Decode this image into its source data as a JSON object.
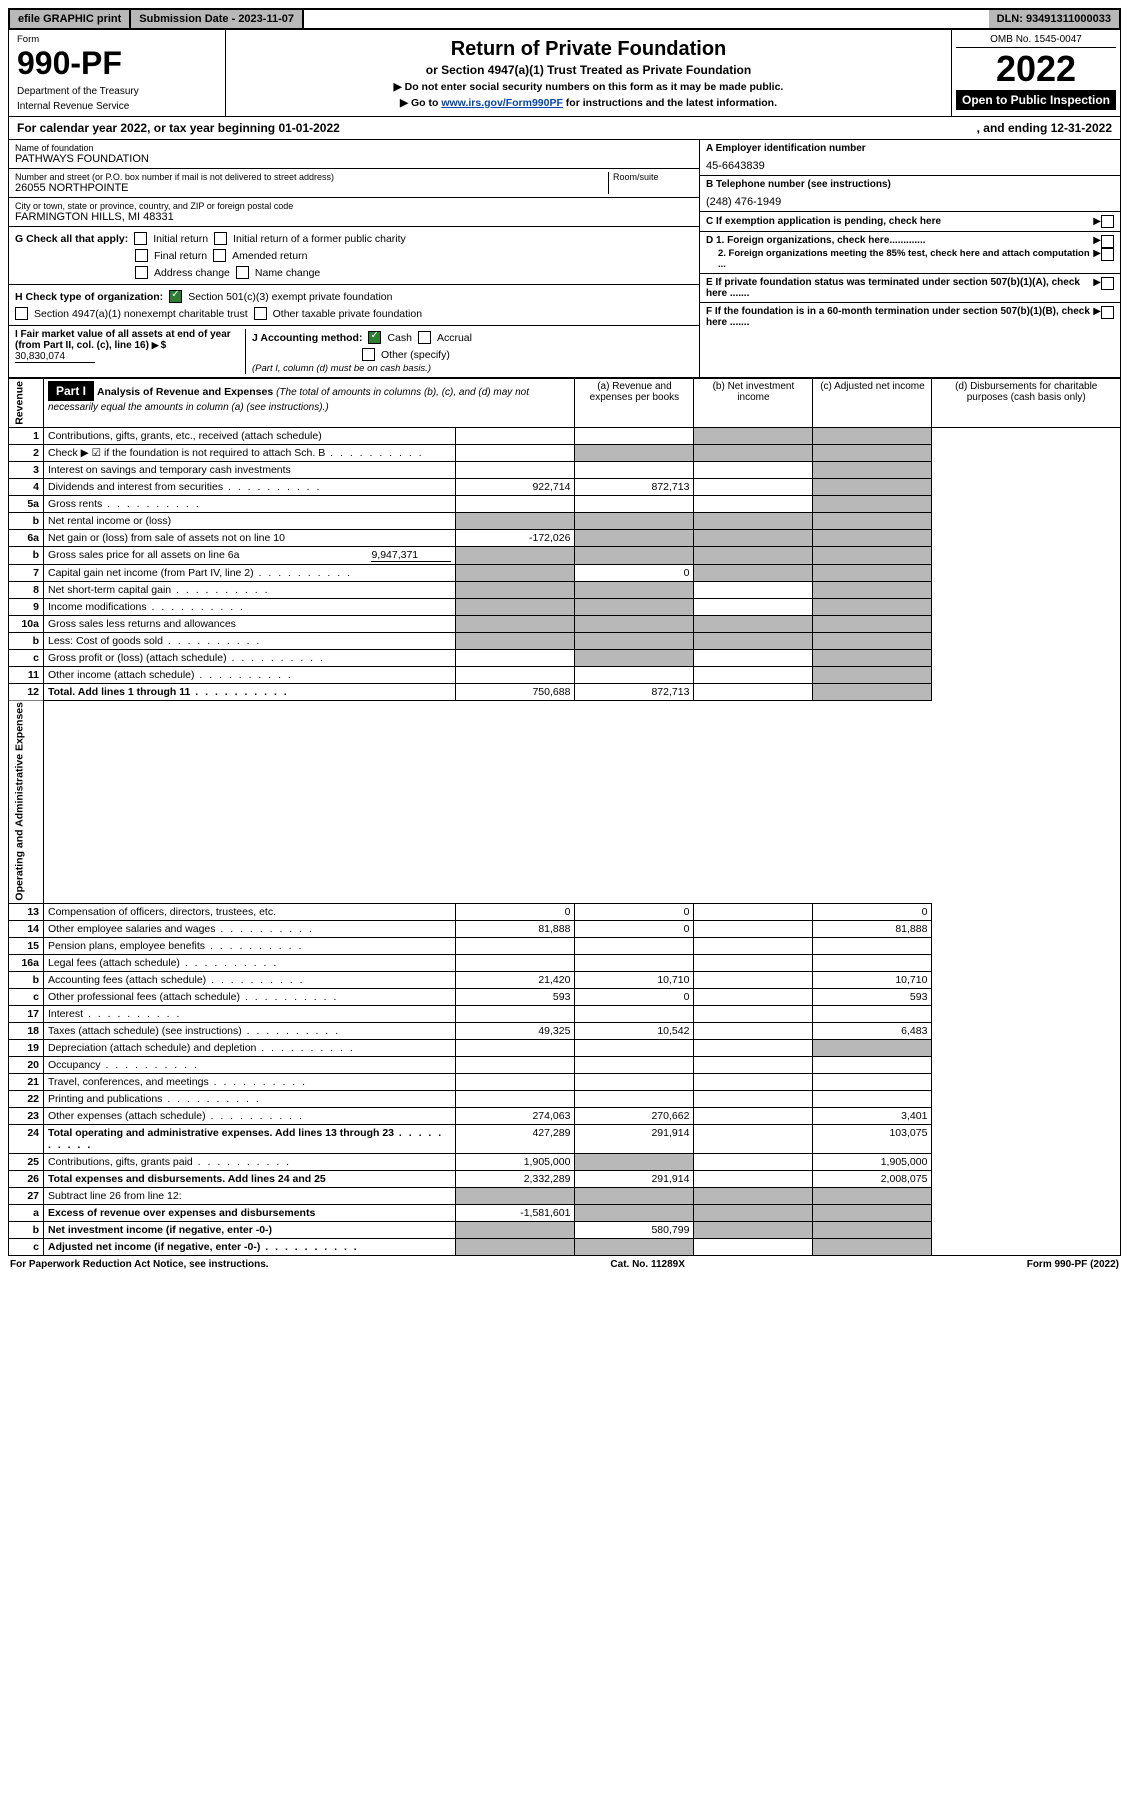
{
  "topbar": {
    "efile": "efile GRAPHIC print",
    "submission": "Submission Date - 2023-11-07",
    "dln": "DLN: 93491311000033"
  },
  "header": {
    "form_label": "Form",
    "form_number": "990-PF",
    "dept": "Department of the Treasury",
    "irs": "Internal Revenue Service",
    "title": "Return of Private Foundation",
    "subtitle": "or Section 4947(a)(1) Trust Treated as Private Foundation",
    "note1": "▶ Do not enter social security numbers on this form as it may be made public.",
    "note2_pre": "▶ Go to ",
    "note2_link": "www.irs.gov/Form990PF",
    "note2_post": " for instructions and the latest information.",
    "omb": "OMB No. 1545-0047",
    "year": "2022",
    "open": "Open to Public Inspection"
  },
  "calendar": {
    "text": "For calendar year 2022, or tax year beginning 01-01-2022",
    "ending": ", and ending 12-31-2022"
  },
  "entity": {
    "name_label": "Name of foundation",
    "name": "PATHWAYS FOUNDATION",
    "addr_label": "Number and street (or P.O. box number if mail is not delivered to street address)",
    "addr": "26055 NORTHPOINTE",
    "room_label": "Room/suite",
    "city_label": "City or town, state or province, country, and ZIP or foreign postal code",
    "city": "FARMINGTON HILLS, MI  48331",
    "ein_label": "A Employer identification number",
    "ein": "45-6643839",
    "phone_label": "B Telephone number (see instructions)",
    "phone": "(248) 476-1949",
    "c_label": "C If exemption application is pending, check here",
    "d1": "D 1. Foreign organizations, check here.............",
    "d2": "2. Foreign organizations meeting the 85% test, check here and attach computation ...",
    "e_label": "E  If private foundation status was terminated under section 507(b)(1)(A), check here .......",
    "f_label": "F  If the foundation is in a 60-month termination under section 507(b)(1)(B), check here ......."
  },
  "checks": {
    "g_label": "G Check all that apply:",
    "initial": "Initial return",
    "initial_former": "Initial return of a former public charity",
    "final": "Final return",
    "amended": "Amended return",
    "address": "Address change",
    "name_change": "Name change",
    "h_label": "H Check type of organization:",
    "h_501c3": "Section 501(c)(3) exempt private foundation",
    "h_4947": "Section 4947(a)(1) nonexempt charitable trust",
    "h_other_tax": "Other taxable private foundation",
    "i_label": "I Fair market value of all assets at end of year (from Part II, col. (c), line 16)",
    "i_value": "30,830,074",
    "j_label": "J Accounting method:",
    "j_cash": "Cash",
    "j_accrual": "Accrual",
    "j_other": "Other (specify)",
    "j_note": "(Part I, column (d) must be on cash basis.)"
  },
  "part1": {
    "label": "Part I",
    "title": "Analysis of Revenue and Expenses",
    "title_note": "(The total of amounts in columns (b), (c), and (d) may not necessarily equal the amounts in column (a) (see instructions).)",
    "col_a": "(a)   Revenue and expenses per books",
    "col_b": "(b)   Net investment income",
    "col_c": "(c)   Adjusted net income",
    "col_d": "(d)   Disbursements for charitable purposes (cash basis only)"
  },
  "sections": {
    "revenue": "Revenue",
    "expenses": "Operating and Administrative Expenses"
  },
  "rows": [
    {
      "n": "1",
      "desc": "Contributions, gifts, grants, etc., received (attach schedule)",
      "a": "",
      "b": "",
      "c": "s",
      "d": "s"
    },
    {
      "n": "2",
      "desc": "Check ▶ ☑ if the foundation is not required to attach Sch. B",
      "a": "",
      "b": "s",
      "c": "s",
      "d": "s",
      "dots": true
    },
    {
      "n": "3",
      "desc": "Interest on savings and temporary cash investments",
      "a": "",
      "b": "",
      "c": "",
      "d": "s"
    },
    {
      "n": "4",
      "desc": "Dividends and interest from securities",
      "a": "922,714",
      "b": "872,713",
      "c": "",
      "d": "s",
      "dots": true
    },
    {
      "n": "5a",
      "desc": "Gross rents",
      "a": "",
      "b": "",
      "c": "",
      "d": "s",
      "dots": true
    },
    {
      "n": "b",
      "desc": "Net rental income or (loss)",
      "a": "s",
      "b": "s",
      "c": "s",
      "d": "s"
    },
    {
      "n": "6a",
      "desc": "Net gain or (loss) from sale of assets not on line 10",
      "a": "-172,026",
      "b": "s",
      "c": "s",
      "d": "s"
    },
    {
      "n": "b",
      "desc": "Gross sales price for all assets on line 6a",
      "extra": "9,947,371",
      "a": "s",
      "b": "s",
      "c": "s",
      "d": "s"
    },
    {
      "n": "7",
      "desc": "Capital gain net income (from Part IV, line 2)",
      "a": "s",
      "b": "0",
      "c": "s",
      "d": "s",
      "dots": true
    },
    {
      "n": "8",
      "desc": "Net short-term capital gain",
      "a": "s",
      "b": "s",
      "c": "",
      "d": "s",
      "dots": true
    },
    {
      "n": "9",
      "desc": "Income modifications",
      "a": "s",
      "b": "s",
      "c": "",
      "d": "s",
      "dots": true
    },
    {
      "n": "10a",
      "desc": "Gross sales less returns and allowances",
      "a": "s",
      "b": "s",
      "c": "s",
      "d": "s"
    },
    {
      "n": "b",
      "desc": "Less: Cost of goods sold",
      "a": "s",
      "b": "s",
      "c": "s",
      "d": "s",
      "dots": true
    },
    {
      "n": "c",
      "desc": "Gross profit or (loss) (attach schedule)",
      "a": "",
      "b": "s",
      "c": "",
      "d": "s",
      "dots": true
    },
    {
      "n": "11",
      "desc": "Other income (attach schedule)",
      "a": "",
      "b": "",
      "c": "",
      "d": "s",
      "dots": true
    },
    {
      "n": "12",
      "desc": "Total. Add lines 1 through 11",
      "a": "750,688",
      "b": "872,713",
      "c": "",
      "d": "s",
      "bold": true,
      "dots": true
    }
  ],
  "exp_rows": [
    {
      "n": "13",
      "desc": "Compensation of officers, directors, trustees, etc.",
      "a": "0",
      "b": "0",
      "c": "",
      "d": "0"
    },
    {
      "n": "14",
      "desc": "Other employee salaries and wages",
      "a": "81,888",
      "b": "0",
      "c": "",
      "d": "81,888",
      "dots": true
    },
    {
      "n": "15",
      "desc": "Pension plans, employee benefits",
      "a": "",
      "b": "",
      "c": "",
      "d": "",
      "dots": true
    },
    {
      "n": "16a",
      "desc": "Legal fees (attach schedule)",
      "a": "",
      "b": "",
      "c": "",
      "d": "",
      "dots": true
    },
    {
      "n": "b",
      "desc": "Accounting fees (attach schedule)",
      "a": "21,420",
      "b": "10,710",
      "c": "",
      "d": "10,710",
      "dots": true
    },
    {
      "n": "c",
      "desc": "Other professional fees (attach schedule)",
      "a": "593",
      "b": "0",
      "c": "",
      "d": "593",
      "dots": true
    },
    {
      "n": "17",
      "desc": "Interest",
      "a": "",
      "b": "",
      "c": "",
      "d": "",
      "dots": true
    },
    {
      "n": "18",
      "desc": "Taxes (attach schedule) (see instructions)",
      "a": "49,325",
      "b": "10,542",
      "c": "",
      "d": "6,483",
      "dots": true
    },
    {
      "n": "19",
      "desc": "Depreciation (attach schedule) and depletion",
      "a": "",
      "b": "",
      "c": "",
      "d": "s",
      "dots": true
    },
    {
      "n": "20",
      "desc": "Occupancy",
      "a": "",
      "b": "",
      "c": "",
      "d": "",
      "dots": true
    },
    {
      "n": "21",
      "desc": "Travel, conferences, and meetings",
      "a": "",
      "b": "",
      "c": "",
      "d": "",
      "dots": true
    },
    {
      "n": "22",
      "desc": "Printing and publications",
      "a": "",
      "b": "",
      "c": "",
      "d": "",
      "dots": true
    },
    {
      "n": "23",
      "desc": "Other expenses (attach schedule)",
      "a": "274,063",
      "b": "270,662",
      "c": "",
      "d": "3,401",
      "dots": true
    },
    {
      "n": "24",
      "desc": "Total operating and administrative expenses. Add lines 13 through 23",
      "a": "427,289",
      "b": "291,914",
      "c": "",
      "d": "103,075",
      "bold": true,
      "dots": true
    },
    {
      "n": "25",
      "desc": "Contributions, gifts, grants paid",
      "a": "1,905,000",
      "b": "s",
      "c": "",
      "d": "1,905,000",
      "dots": true
    },
    {
      "n": "26",
      "desc": "Total expenses and disbursements. Add lines 24 and 25",
      "a": "2,332,289",
      "b": "291,914",
      "c": "",
      "d": "2,008,075",
      "bold": true
    },
    {
      "n": "27",
      "desc": "Subtract line 26 from line 12:",
      "a": "s",
      "b": "s",
      "c": "s",
      "d": "s"
    },
    {
      "n": "a",
      "desc": "Excess of revenue over expenses and disbursements",
      "a": "-1,581,601",
      "b": "s",
      "c": "s",
      "d": "s",
      "bold": true
    },
    {
      "n": "b",
      "desc": "Net investment income (if negative, enter -0-)",
      "a": "s",
      "b": "580,799",
      "c": "s",
      "d": "s",
      "bold": true
    },
    {
      "n": "c",
      "desc": "Adjusted net income (if negative, enter -0-)",
      "a": "s",
      "b": "s",
      "c": "",
      "d": "s",
      "bold": true,
      "dots": true
    }
  ],
  "footer": {
    "left": "For Paperwork Reduction Act Notice, see instructions.",
    "center": "Cat. No. 11289X",
    "right": "Form 990-PF (2022)"
  }
}
